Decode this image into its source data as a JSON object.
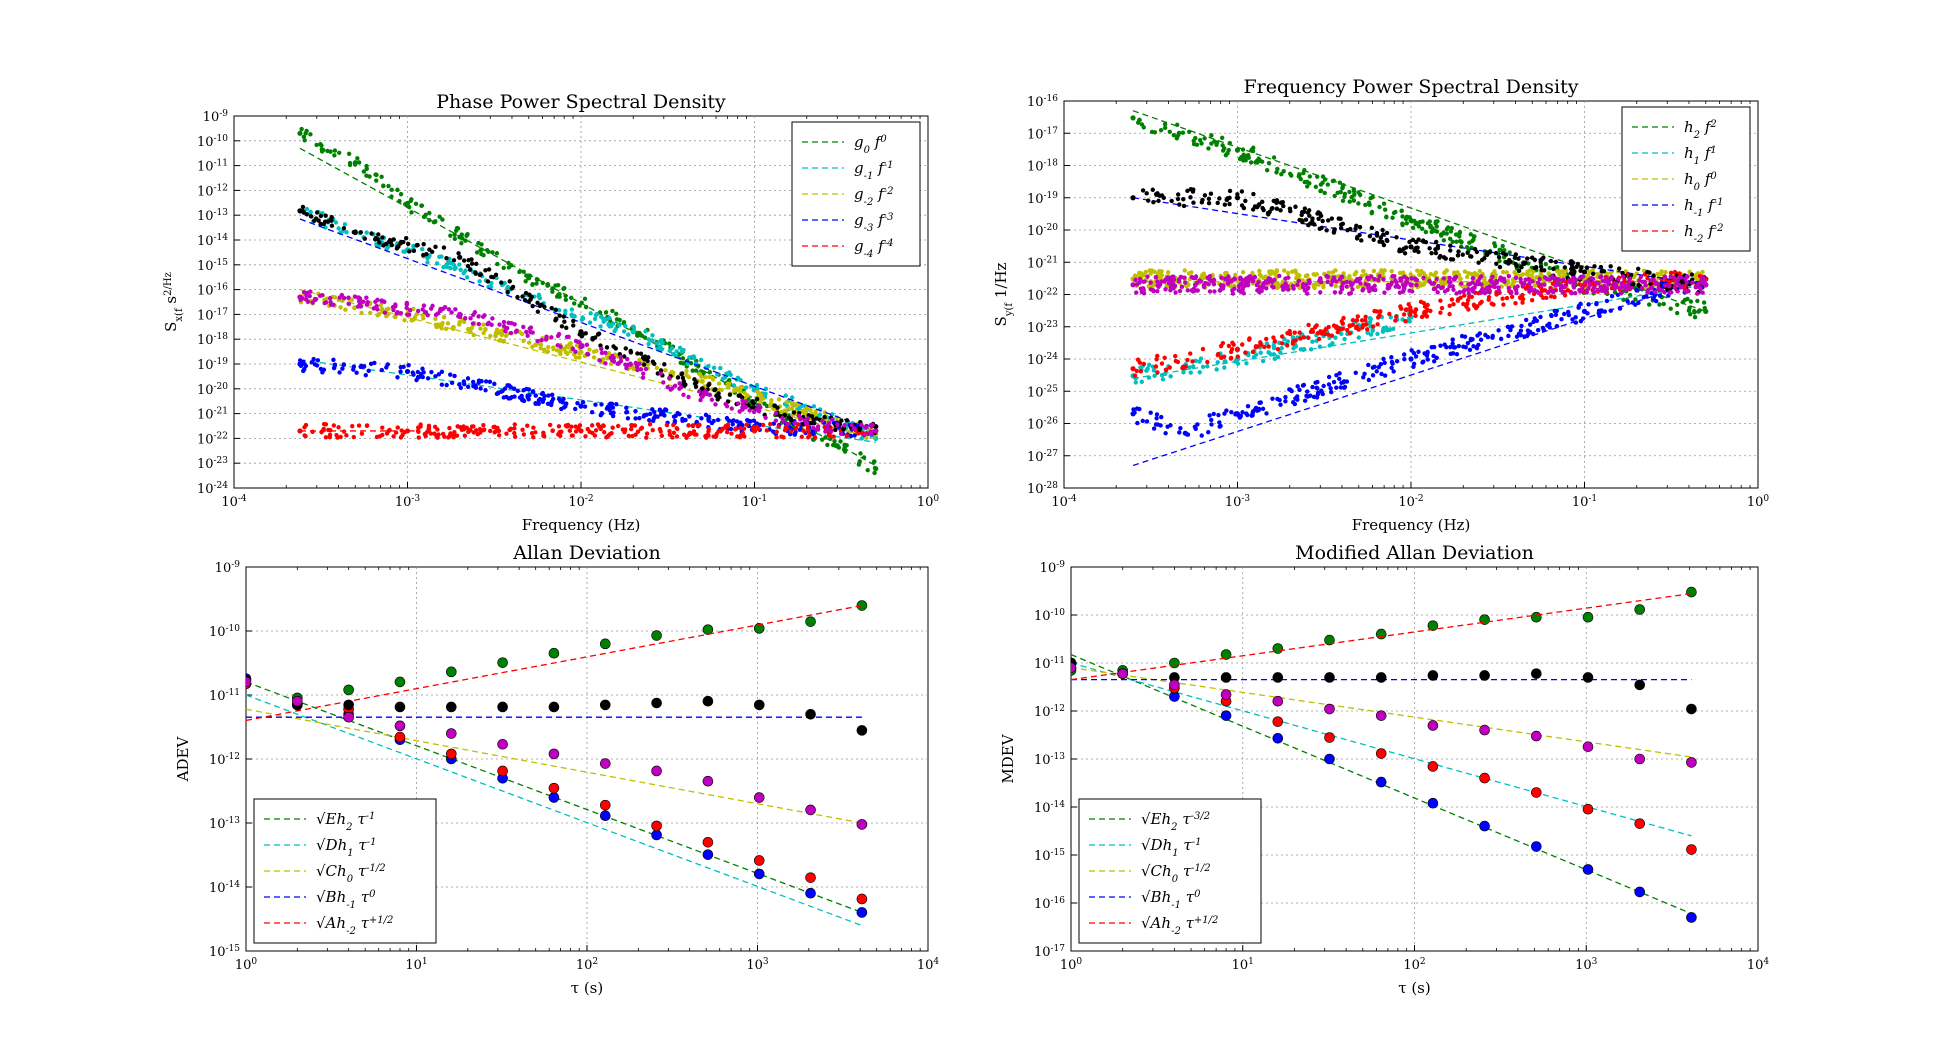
{
  "chart_data": [
    {
      "id": "phase-psd",
      "type": "scatter",
      "title": "Phase Power Spectral Density",
      "xlabel": "Frequency (Hz)",
      "ylabel": "S_x(f) (s^2/Hz)",
      "xscale": "log",
      "yscale": "log",
      "xlim": [
        0.0001,
        1
      ],
      "ylim": [
        1e-24,
        1e-09
      ],
      "grid": true,
      "x_ticks": [
        "10^-4",
        "10^-3",
        "10^-2",
        "10^-1",
        "10^0"
      ],
      "y_ticks": [
        "10^-24",
        "10^-23",
        "10^-22",
        "10^-21",
        "10^-20",
        "10^-19",
        "10^-18",
        "10^-17",
        "10^-16",
        "10^-15",
        "10^-14",
        "10^-13",
        "10^-12",
        "10^-11",
        "10^-10",
        "10^-9"
      ],
      "legend_position": "top-right",
      "series": [
        {
          "name": "g_0 f^0",
          "color": "#008000",
          "points": [
            [
              0.00024,
              2e-10
            ],
            [
              0.0005,
              1.3e-11
            ],
            [
              0.001,
              3e-13
            ],
            [
              0.005,
              3e-16
            ],
            [
              0.02,
              3e-18
            ],
            [
              0.1,
              3e-21
            ],
            [
              0.3,
              5e-23
            ],
            [
              0.5,
              6e-24
            ]
          ],
          "fit": {
            "from": [
              0.00024,
              5e-11
            ],
            "to": [
              0.5,
              8e-24
            ]
          }
        },
        {
          "name": "g_-1 f^-1",
          "color": "#00bfbf",
          "points": [
            [
              0.00024,
              1.5e-13
            ],
            [
              0.0005,
              2e-14
            ],
            [
              0.001,
              4e-15
            ],
            [
              0.005,
              6e-17
            ],
            [
              0.02,
              2e-18
            ],
            [
              0.1,
              1e-20
            ],
            [
              0.5,
              1e-22
            ]
          ],
          "fit": {
            "from": [
              0.00024,
              1.5e-19
            ],
            "to": [
              0.5,
              7e-23
            ]
          }
        },
        {
          "name": "g_-2 f^-2",
          "color": "#bfbf00",
          "points": [
            [
              0.00024,
              5e-17
            ],
            [
              0.001,
              1e-17
            ],
            [
              0.01,
              3e-19
            ],
            [
              0.05,
              2e-20
            ],
            [
              0.5,
              1.5e-22
            ]
          ],
          "fit": {
            "from": [
              0.00024,
              1e-16
            ],
            "to": [
              0.5,
              1e-22
            ]
          }
        },
        {
          "name": "g_-3 f^-3",
          "color": "#0000ff",
          "points": [
            [
              0.00024,
              1e-19
            ],
            [
              0.001,
              5e-20
            ],
            [
              0.01,
              2e-21
            ],
            [
              0.1,
              3e-22
            ],
            [
              0.5,
              2e-22
            ]
          ],
          "fit": {
            "from": [
              0.00024,
              7e-14
            ],
            "to": [
              0.5,
              2e-22
            ]
          }
        },
        {
          "name": "g_-4 f^-4",
          "color": "#ff0000",
          "points": [
            [
              0.00024,
              2e-22
            ],
            [
              0.001,
              2e-22
            ],
            [
              0.01,
              2e-22
            ],
            [
              0.1,
              2e-22
            ],
            [
              0.5,
              2e-22
            ]
          ],
          "fit": {
            "from": [
              0.00024,
              2e-22
            ],
            "to": [
              0.0011,
              2e-22
            ]
          }
        },
        {
          "name": "",
          "color": "#000000",
          "points": [
            [
              0.00024,
              1.5e-13
            ],
            [
              0.0005,
              2e-14
            ],
            [
              0.002,
              2e-15
            ],
            [
              0.01,
              2e-18
            ],
            [
              0.05,
              1e-20
            ],
            [
              0.2,
              5e-22
            ],
            [
              0.5,
              3e-22
            ]
          ]
        },
        {
          "name": "",
          "color": "#bf00bf",
          "points": [
            [
              0.00024,
              5e-17
            ],
            [
              0.002,
              1e-17
            ],
            [
              0.01,
              5e-19
            ],
            [
              0.05,
              5e-21
            ],
            [
              0.2,
              4e-22
            ],
            [
              0.5,
              2e-22
            ]
          ]
        }
      ]
    },
    {
      "id": "frequency-psd",
      "type": "scatter",
      "title": "Frequency Power Spectral Density",
      "xlabel": "Frequency (Hz)",
      "ylabel": "S_y(f) (1/Hz)",
      "xscale": "log",
      "yscale": "log",
      "xlim": [
        0.0001,
        1
      ],
      "ylim": [
        1e-28,
        1e-16
      ],
      "grid": true,
      "x_ticks": [
        "10^-4",
        "10^-3",
        "10^-2",
        "10^-1",
        "10^0"
      ],
      "y_ticks": [
        "10^-28",
        "10^-27",
        "10^-26",
        "10^-25",
        "10^-24",
        "10^-23",
        "10^-22",
        "10^-21",
        "10^-20",
        "10^-19",
        "10^-18",
        "10^-17",
        "10^-16"
      ],
      "legend_position": "top-right",
      "series": [
        {
          "name": "h_2 f^2",
          "color": "#008000",
          "points": [
            [
              0.00025,
              3e-17
            ],
            [
              0.001,
              3e-18
            ],
            [
              0.01,
              2e-20
            ],
            [
              0.1,
              2e-22
            ],
            [
              0.5,
              3e-23
            ]
          ],
          "fit": {
            "from": [
              0.00025,
              5e-17
            ],
            "to": [
              0.5,
              3e-23
            ]
          }
        },
        {
          "name": "h_1 f^1",
          "color": "#00bfbf",
          "points": [
            [
              0.00025,
              3e-25
            ],
            [
              0.001,
              1e-24
            ],
            [
              0.01,
              2e-23
            ]
          ],
          "fit": {
            "from": [
              0.00025,
              2.5e-25
            ],
            "to": [
              0.5,
              2e-22
            ]
          }
        },
        {
          "name": "h_0 f^0",
          "color": "#bfbf00",
          "points": [
            [
              0.00025,
              3e-22
            ],
            [
              0.01,
              3e-22
            ],
            [
              0.5,
              3e-22
            ]
          ],
          "fit": {
            "from": [
              0.00025,
              2.5e-22
            ],
            "to": [
              0.5,
              2.5e-22
            ]
          }
        },
        {
          "name": "h_-1 f^-1",
          "color": "#0000ff",
          "points": [
            [
              0.00025,
              2e-26
            ],
            [
              0.0005,
              5e-27
            ],
            [
              0.001,
              2e-26
            ],
            [
              0.01,
              1e-24
            ],
            [
              0.1,
              3e-23
            ],
            [
              0.5,
              3e-22
            ]
          ],
          "fit": {
            "from": [
              0.00025,
              5e-28
            ],
            "to": [
              0.5,
              3e-22
            ]
          }
        },
        {
          "name": "h_-2 f^-2",
          "color": "#ff0000",
          "points": [
            [
              0.00025,
              5e-25
            ],
            [
              0.001,
              2e-24
            ],
            [
              0.01,
              3e-23
            ],
            [
              0.1,
              2e-22
            ],
            [
              0.5,
              3e-22
            ]
          ]
        },
        {
          "name": "",
          "color": "#000000",
          "points": [
            [
              0.00025,
              1e-19
            ],
            [
              0.001,
              1e-19
            ],
            [
              0.01,
              3e-21
            ],
            [
              0.1,
              5e-22
            ],
            [
              0.5,
              2e-22
            ]
          ],
          "fit_color": "#0000ff",
          "fit": {
            "from": [
              0.00025,
              1e-19
            ],
            "to": [
              0.5,
              2e-22
            ]
          }
        },
        {
          "name": "",
          "color": "#bf00bf",
          "points": [
            [
              0.00025,
              2e-22
            ],
            [
              0.01,
              2e-22
            ],
            [
              0.5,
              2e-22
            ]
          ]
        }
      ]
    },
    {
      "id": "allan-deviation",
      "type": "scatter",
      "title": "Allan Deviation",
      "xlabel": "τ (s)",
      "ylabel": "ADEV",
      "xscale": "log",
      "yscale": "log",
      "xlim": [
        1,
        10000
      ],
      "ylim": [
        1e-15,
        1e-09
      ],
      "grid": true,
      "x_ticks": [
        "10^0",
        "10^1",
        "10^2",
        "10^3",
        "10^4"
      ],
      "y_ticks": [
        "10^-15",
        "10^-14",
        "10^-13",
        "10^-12",
        "10^-11",
        "10^-10",
        "10^-9"
      ],
      "legend_position": "bottom-left",
      "tau": [
        1,
        2,
        4,
        8,
        16,
        32,
        64,
        128,
        256,
        512,
        1024,
        2048,
        4096
      ],
      "series": [
        {
          "name": "√(Eh_2) τ^-1",
          "color": "#008000",
          "values": [
            1.5e-11,
            9e-12,
            1.2e-11,
            1.6e-11,
            2.3e-11,
            3.2e-11,
            4.5e-11,
            6.3e-11,
            8.5e-11,
            1.05e-10,
            1.1e-10,
            1.4e-10,
            2.5e-10
          ],
          "fit": {
            "from": [
              1,
              1.6e-11
            ],
            "to": [
              4096,
              4e-15
            ]
          }
        },
        {
          "name": "√(Dh_1) τ^-1",
          "color": "#00bfbf",
          "values": [],
          "fit": {
            "from": [
              1,
              1e-11
            ],
            "to": [
              4096,
              2.5e-15
            ]
          }
        },
        {
          "name": "√(Ch_0) τ^-1/2",
          "color": "#bfbf00",
          "values": [],
          "fit": {
            "from": [
              1,
              6e-12
            ],
            "to": [
              4096,
              1e-13
            ]
          }
        },
        {
          "name": "√(Bh_-1) τ^0",
          "color": "#0000ff",
          "values": [
            1.8e-11,
            7e-12,
            5e-12,
            2e-12,
            1e-12,
            5e-13,
            2.5e-13,
            1.3e-13,
            6.5e-14,
            3.2e-14,
            1.6e-14,
            8e-15,
            4e-15
          ],
          "fit": {
            "from": [
              1,
              4.5e-12
            ],
            "to": [
              4096,
              4.5e-12
            ]
          }
        },
        {
          "name": "√(Ah_-2) τ^+1/2",
          "color": "#ff0000",
          "values": [
            1.5e-11,
            7e-12,
            6e-12,
            2.2e-12,
            1.2e-12,
            6.5e-13,
            3.5e-13,
            1.9e-13,
            9e-14,
            5e-14,
            2.6e-14,
            1.4e-14,
            6.5e-15
          ],
          "fit": {
            "from": [
              1,
              4e-12
            ],
            "to": [
              4096,
              2.5e-10
            ]
          }
        },
        {
          "name": "",
          "color": "#000000",
          "values": [
            1.7e-11,
            7e-12,
            7e-12,
            6.5e-12,
            6.5e-12,
            6.5e-12,
            6.5e-12,
            7e-12,
            7.5e-12,
            8e-12,
            7e-12,
            5e-12,
            2.8e-12
          ]
        },
        {
          "name": "",
          "color": "#bf00bf",
          "values": [
            1.6e-11,
            8e-12,
            4.5e-12,
            3.3e-12,
            2.5e-12,
            1.7e-12,
            1.2e-12,
            8.5e-13,
            6.5e-13,
            4.5e-13,
            2.5e-13,
            1.6e-13,
            9.5e-14
          ]
        }
      ]
    },
    {
      "id": "modified-allan-deviation",
      "type": "scatter",
      "title": "Modified Allan Deviation",
      "xlabel": "τ (s)",
      "ylabel": "MDEV",
      "xscale": "log",
      "yscale": "log",
      "xlim": [
        1,
        10000
      ],
      "ylim": [
        1e-17,
        1e-09
      ],
      "grid": true,
      "x_ticks": [
        "10^0",
        "10^1",
        "10^2",
        "10^3",
        "10^4"
      ],
      "y_ticks": [
        "10^-17",
        "10^-16",
        "10^-15",
        "10^-14",
        "10^-13",
        "10^-12",
        "10^-11",
        "10^-10",
        "10^-9"
      ],
      "legend_position": "bottom-left",
      "tau": [
        1,
        2,
        4,
        8,
        16,
        32,
        64,
        128,
        256,
        512,
        1024,
        2048,
        4096
      ],
      "series": [
        {
          "name": "√(Eh_2) τ^-3/2",
          "color": "#008000",
          "values": [
            7e-12,
            7e-12,
            1e-11,
            1.5e-11,
            2e-11,
            3e-11,
            4e-11,
            6e-11,
            8e-11,
            9e-11,
            9e-11,
            1.3e-10,
            3e-10
          ],
          "fit": {
            "from": [
              1,
              1.5e-11
            ],
            "to": [
              4096,
              6e-17
            ]
          }
        },
        {
          "name": "√(Dh_1) τ^-1",
          "color": "#00bfbf",
          "values": [],
          "fit": {
            "from": [
              1,
              1e-11
            ],
            "to": [
              4096,
              2.5e-15
            ]
          }
        },
        {
          "name": "√(Ch_0) τ^-1/2",
          "color": "#bfbf00",
          "values": [],
          "fit": {
            "from": [
              1,
              8e-12
            ],
            "to": [
              4096,
              1.1e-13
            ]
          }
        },
        {
          "name": "√(Bh_-1) τ^0",
          "color": "#0000ff",
          "values": [
            1e-11,
            6e-12,
            2e-12,
            8e-13,
            2.7e-13,
            1e-13,
            3.3e-14,
            1.2e-14,
            4e-15,
            1.5e-15,
            5e-16,
            1.7e-16,
            5e-17
          ],
          "fit": {
            "from": [
              1,
              4.5e-12
            ],
            "to": [
              4096,
              4.5e-12
            ]
          }
        },
        {
          "name": "√(Ah_-2) τ^+1/2",
          "color": "#ff0000",
          "values": [
            1e-11,
            6e-12,
            3e-12,
            1.6e-12,
            6e-13,
            2.8e-13,
            1.3e-13,
            7e-14,
            4e-14,
            2e-14,
            9e-15,
            4.5e-15,
            1.3e-15
          ],
          "fit": {
            "from": [
              1,
              4.5e-12
            ],
            "to": [
              4096,
              2.8e-10
            ]
          }
        },
        {
          "name": "",
          "color": "#000000",
          "values": [
            1e-11,
            6e-12,
            5e-12,
            5e-12,
            5e-12,
            5e-12,
            5e-12,
            5.5e-12,
            5.5e-12,
            6e-12,
            5e-12,
            3.5e-12,
            1.1e-12
          ]
        },
        {
          "name": "",
          "color": "#bf00bf",
          "values": [
            8e-12,
            6e-12,
            3.5e-12,
            2.2e-12,
            1.6e-12,
            1.1e-12,
            8e-13,
            5e-13,
            4e-13,
            3e-13,
            1.8e-13,
            1e-13,
            8.5e-14
          ]
        }
      ]
    }
  ]
}
